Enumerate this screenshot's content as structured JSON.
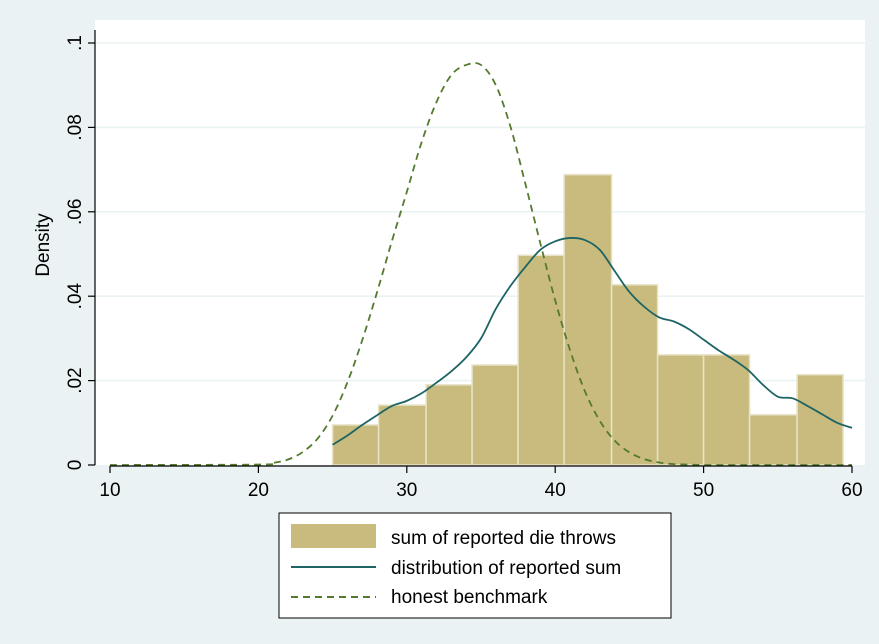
{
  "chart_data": {
    "type": "bar",
    "xlabel": "",
    "ylabel": "Density",
    "xlim": [
      10,
      60
    ],
    "ylim": [
      0,
      0.1
    ],
    "grid": true,
    "legend_placement": "bottom",
    "x_ticks": [
      {
        "value": 10,
        "label": "10"
      },
      {
        "value": 20,
        "label": "20"
      },
      {
        "value": 30,
        "label": "30"
      },
      {
        "value": 40,
        "label": "40"
      },
      {
        "value": 50,
        "label": "50"
      },
      {
        "value": 60,
        "label": "60"
      }
    ],
    "y_ticks": [
      {
        "value": 0,
        "label": "0"
      },
      {
        "value": 0.02,
        "label": ".02"
      },
      {
        "value": 0.04,
        "label": ".04"
      },
      {
        "value": 0.06,
        "label": ".06"
      },
      {
        "value": 0.08,
        "label": ".08"
      },
      {
        "value": 0.1,
        "label": ".1"
      }
    ],
    "histogram": {
      "name": "sum of reported die throws",
      "color": "#C8BB7D",
      "edge_color": "#E8E3C8",
      "bins": [
        {
          "x0": 25.0,
          "x1": 28.1,
          "value": 0.0095
        },
        {
          "x0": 28.1,
          "x1": 31.3,
          "value": 0.0142
        },
        {
          "x0": 31.3,
          "x1": 34.4,
          "value": 0.019
        },
        {
          "x0": 34.4,
          "x1": 37.5,
          "value": 0.0237
        },
        {
          "x0": 37.5,
          "x1": 40.6,
          "value": 0.0497
        },
        {
          "x0": 40.6,
          "x1": 43.8,
          "value": 0.0688
        },
        {
          "x0": 43.8,
          "x1": 46.9,
          "value": 0.0427
        },
        {
          "x0": 46.9,
          "x1": 50.0,
          "value": 0.0261
        },
        {
          "x0": 50.0,
          "x1": 53.1,
          "value": 0.0261
        },
        {
          "x0": 53.1,
          "x1": 56.3,
          "value": 0.0119
        },
        {
          "x0": 56.3,
          "x1": 59.4,
          "value": 0.0214
        }
      ]
    },
    "series": [
      {
        "name": "distribution of reported sum",
        "style": "solid",
        "color": "#1E6464",
        "x": [
          25,
          26,
          27,
          28,
          29,
          30,
          31,
          32,
          33,
          34,
          35,
          36,
          37,
          38,
          39,
          40,
          41,
          42,
          43,
          44,
          45,
          46,
          47,
          48,
          49,
          50,
          51,
          52,
          53,
          54,
          55,
          56,
          57,
          58,
          59,
          60
        ],
        "y": [
          0.0048,
          0.007,
          0.0095,
          0.0118,
          0.014,
          0.0152,
          0.017,
          0.0195,
          0.0222,
          0.0255,
          0.03,
          0.037,
          0.0425,
          0.047,
          0.051,
          0.053,
          0.0538,
          0.0533,
          0.051,
          0.046,
          0.041,
          0.0375,
          0.035,
          0.034,
          0.0322,
          0.0297,
          0.0272,
          0.025,
          0.0225,
          0.019,
          0.0162,
          0.0158,
          0.014,
          0.012,
          0.01,
          0.0088
        ]
      },
      {
        "name": "honest benchmark",
        "style": "dashed",
        "color": "#557A2E",
        "x": [
          10,
          20,
          21,
          22,
          23,
          24,
          25,
          26,
          27,
          28,
          29,
          30,
          31,
          32,
          33,
          34,
          35,
          36,
          37,
          38,
          39,
          40,
          41,
          42,
          43,
          44,
          45,
          46,
          47,
          48,
          49,
          50,
          52,
          55,
          60
        ],
        "y": [
          0,
          0.0001,
          0.0005,
          0.0013,
          0.0031,
          0.0063,
          0.0117,
          0.0196,
          0.0296,
          0.041,
          0.0531,
          0.0647,
          0.0765,
          0.086,
          0.0924,
          0.0948,
          0.0948,
          0.09,
          0.08,
          0.0665,
          0.0525,
          0.039,
          0.0272,
          0.0175,
          0.0105,
          0.0058,
          0.003,
          0.0014,
          0.0006,
          0.0002,
          0.0001,
          0.0,
          0.0,
          0.0,
          0.0
        ]
      }
    ]
  },
  "colors": {
    "outer_background": "#EAF2F3",
    "plot_background": "#FFFFFF",
    "grid": "#EAF2F3",
    "axis": "#000000"
  }
}
